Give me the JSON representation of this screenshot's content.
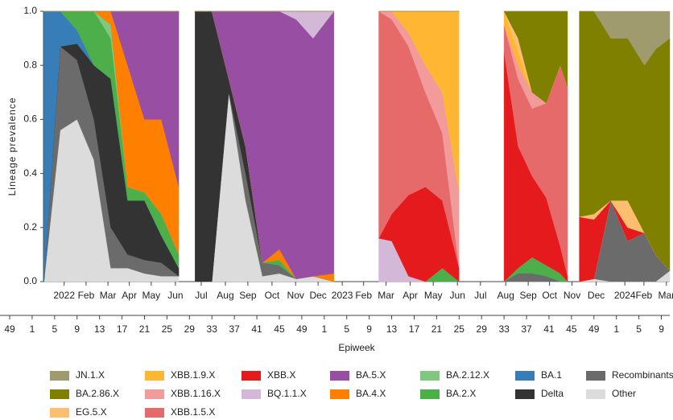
{
  "chart_data": {
    "type": "stacked_area",
    "y_label": "Lineage prevalence",
    "x2_label": "Epiweek",
    "ylim": [
      0,
      1
    ],
    "yticks": [
      {
        "value": 0,
        "label": "0.0"
      },
      0.2,
      0.4,
      0.6,
      0.8,
      {
        "value": 1,
        "label": "1.0"
      }
    ],
    "xlim": [
      6.1,
      117.5
    ],
    "x2lim": [
      0,
      117.5
    ],
    "xticks": [
      {
        "value": 9.7,
        "label": "2022"
      },
      {
        "value": 13.6,
        "label": "Feb"
      },
      {
        "value": 17.5,
        "label": "Mar"
      },
      {
        "value": 21.3,
        "label": "Apr"
      },
      {
        "value": 25.2,
        "label": "May"
      },
      {
        "value": 29.5,
        "label": "Jun"
      },
      {
        "value": 34.1,
        "label": "Jul"
      },
      {
        "value": 38.4,
        "label": "Aug"
      },
      {
        "value": 42.4,
        "label": "Sep"
      },
      {
        "value": 46.7,
        "label": "Oct"
      },
      {
        "value": 50.9,
        "label": "Nov"
      },
      {
        "value": 54.9,
        "label": "Dec"
      },
      {
        "value": 59.2,
        "label": "2023"
      },
      {
        "value": 63,
        "label": "Feb"
      },
      {
        "value": 67,
        "label": "Mar"
      },
      {
        "value": 71.3,
        "label": "Apr"
      },
      {
        "value": 75.4,
        "label": "May"
      },
      {
        "value": 79.7,
        "label": "Jun"
      },
      {
        "value": 83.8,
        "label": "Jul"
      },
      {
        "value": 88.3,
        "label": "Aug"
      },
      {
        "value": 92.3,
        "label": "Sep"
      },
      {
        "value": 96.1,
        "label": "Oct"
      },
      {
        "value": 100.1,
        "label": "Nov"
      },
      {
        "value": 104.4,
        "label": "Dec"
      },
      {
        "value": 109.5,
        "label": "2024"
      },
      {
        "value": 112.9,
        "label": "Feb"
      },
      {
        "value": 116.9,
        "label": "Mar"
      }
    ],
    "x2ticks": [
      {
        "value": 0,
        "label": "49"
      },
      {
        "value": 4,
        "label": "1"
      },
      {
        "value": 8,
        "label": "5"
      },
      {
        "value": 12,
        "label": "9"
      },
      {
        "value": 16,
        "label": "13"
      },
      {
        "value": 20,
        "label": "17"
      },
      {
        "value": 24,
        "label": "21"
      },
      {
        "value": 28,
        "label": "25"
      },
      {
        "value": 32,
        "label": "29"
      },
      {
        "value": 36,
        "label": "33"
      },
      {
        "value": 40,
        "label": "37"
      },
      {
        "value": 44,
        "label": "41"
      },
      {
        "value": 48,
        "label": "45"
      },
      {
        "value": 52,
        "label": "49"
      },
      {
        "value": 56,
        "label": "1"
      },
      {
        "value": 60,
        "label": "5"
      },
      {
        "value": 64,
        "label": "9"
      },
      {
        "value": 68,
        "label": "13"
      },
      {
        "value": 72,
        "label": "17"
      },
      {
        "value": 76,
        "label": "21"
      },
      {
        "value": 80,
        "label": "25"
      },
      {
        "value": 84,
        "label": "29"
      },
      {
        "value": 88,
        "label": "33"
      },
      {
        "value": 92,
        "label": "37"
      },
      {
        "value": 96,
        "label": "41"
      },
      {
        "value": 100,
        "label": "45"
      },
      {
        "value": 104,
        "label": "49"
      },
      {
        "value": 108,
        "label": "1"
      },
      {
        "value": 112,
        "label": "5"
      },
      {
        "value": 116,
        "label": "9"
      }
    ],
    "x": [
      6.1,
      9,
      12,
      15,
      18,
      21,
      24,
      27,
      30.1,
      31.5,
      33,
      36,
      39,
      42,
      45,
      48,
      51,
      54,
      57.7,
      61,
      65.7,
      68,
      71,
      74,
      77,
      80,
      84,
      88,
      90.5,
      93,
      95.5,
      98,
      99.3,
      100.3,
      101.4,
      104,
      107,
      110,
      113,
      115,
      117.5
    ],
    "series": [
      {
        "name": "JN.1.X",
        "color": "#a09b6e",
        "values": [
          0,
          0,
          0,
          0,
          0,
          0,
          0,
          0,
          0,
          null,
          0,
          0,
          0,
          0,
          0,
          0,
          0,
          0,
          0,
          null,
          0,
          0,
          0,
          0,
          0,
          0,
          null,
          0,
          0,
          0,
          0,
          0,
          0,
          null,
          0,
          0,
          0.1,
          0.1,
          0.2,
          0.14,
          0.1
        ]
      },
      {
        "name": "BA.2.86.X",
        "color": "#7f7f00",
        "values": [
          0,
          0,
          0,
          0,
          0,
          0,
          0,
          0,
          0,
          null,
          0,
          0,
          0,
          0,
          0,
          0,
          0,
          0,
          0,
          null,
          0,
          0,
          0,
          0,
          0,
          0,
          null,
          0,
          0.1,
          0.3,
          0.34,
          0.2,
          0.28,
          null,
          0.76,
          0.75,
          0.6,
          0.6,
          0.62,
          0.76,
          0.86
        ]
      },
      {
        "name": "EG.5.X",
        "color": "#fdbf6f",
        "values": [
          0,
          0,
          0,
          0,
          0,
          0,
          0,
          0,
          0,
          null,
          0,
          0,
          0,
          0,
          0,
          0,
          0,
          0,
          0,
          null,
          0,
          0,
          0,
          0,
          0,
          0,
          null,
          0,
          0.05,
          0,
          0,
          0,
          0,
          null,
          0,
          0.02,
          0,
          0.1,
          0,
          0,
          0
        ]
      },
      {
        "name": "XBB.1.9.X",
        "color": "#ffb733",
        "values": [
          0,
          0,
          0,
          0,
          0,
          0,
          0,
          0,
          0,
          null,
          0,
          0,
          0,
          0,
          0,
          0,
          0,
          0,
          0,
          null,
          0,
          0,
          0.08,
          0.2,
          0.3,
          0.67,
          null,
          0.05,
          0.05,
          0,
          0,
          0,
          0,
          null,
          0,
          0,
          0,
          0,
          0,
          0,
          0
        ]
      },
      {
        "name": "XBB.1.16.X",
        "color": "#f29b9b",
        "values": [
          0,
          0,
          0,
          0,
          0,
          0,
          0,
          0,
          0,
          null,
          0,
          0,
          0,
          0,
          0,
          0,
          0,
          0,
          0,
          null,
          0,
          0.03,
          0.05,
          0.1,
          0.15,
          0.28,
          null,
          0,
          0.05,
          0.06,
          0,
          0,
          0,
          null,
          0,
          0,
          0,
          0,
          0,
          0,
          0
        ]
      },
      {
        "name": "XBB.1.5.X",
        "color": "#e76a6a",
        "values": [
          0,
          0,
          0,
          0,
          0,
          0,
          0,
          0,
          0,
          null,
          0,
          0,
          0,
          0,
          0,
          0,
          0,
          0,
          0,
          null,
          0.84,
          0.72,
          0.55,
          0.35,
          0.25,
          0,
          null,
          0.1,
          0.25,
          0.25,
          0.35,
          0.67,
          0.7,
          null,
          0,
          0,
          0,
          0,
          0,
          0,
          0
        ]
      },
      {
        "name": "XBB.X",
        "color": "#e41a1c",
        "values": [
          0,
          0,
          0,
          0,
          0,
          0,
          0,
          0,
          0,
          null,
          0,
          0,
          0,
          0,
          0,
          0,
          0,
          0,
          0,
          null,
          0,
          0.1,
          0.3,
          0.35,
          0.25,
          0.05,
          null,
          0.85,
          0.45,
          0.3,
          0.25,
          0.1,
          0.02,
          null,
          0.24,
          0.22,
          0,
          0.05,
          0,
          0,
          0
        ]
      },
      {
        "name": "BQ.1.1.X",
        "color": "#d3b9d7",
        "values": [
          0,
          0,
          0,
          0,
          0,
          0,
          0,
          0,
          0,
          null,
          0,
          0,
          0,
          0,
          0,
          0,
          0.03,
          0.1,
          0,
          null,
          0.16,
          0.15,
          0.02,
          0,
          0,
          0,
          null,
          0,
          0,
          0,
          0,
          0,
          0,
          null,
          0,
          0,
          0,
          0,
          0,
          0,
          0
        ]
      },
      {
        "name": "BA.5.X",
        "color": "#984ea3",
        "values": [
          0,
          0,
          0,
          0,
          0,
          0.2,
          0.4,
          0.4,
          0.65,
          null,
          0,
          0,
          0.25,
          0.5,
          0.93,
          0.88,
          0.96,
          0.88,
          0.97,
          null,
          0,
          0,
          0,
          0,
          0,
          0,
          null,
          0,
          0,
          0,
          0,
          0,
          0,
          null,
          0,
          0,
          0,
          0,
          0,
          0,
          0
        ]
      },
      {
        "name": "BA.4.X",
        "color": "#ff7f00",
        "values": [
          0,
          0,
          0,
          0,
          0.05,
          0.45,
          0.27,
          0.35,
          0.25,
          null,
          0,
          0,
          0,
          0,
          0,
          0.04,
          0,
          0,
          0.03,
          null,
          0,
          0,
          0,
          0,
          0,
          0,
          null,
          0,
          0,
          0,
          0,
          0,
          0,
          null,
          0,
          0,
          0,
          0,
          0,
          0,
          0
        ]
      },
      {
        "name": "BA.2.12.X",
        "color": "#80c77f",
        "values": [
          0,
          0,
          0,
          0,
          0.05,
          0,
          0,
          0,
          0,
          null,
          0,
          0,
          0,
          0,
          0,
          0,
          0,
          0,
          0,
          null,
          0,
          0,
          0,
          0,
          0,
          0,
          null,
          0,
          0,
          0,
          0,
          0,
          0,
          null,
          0,
          0,
          0,
          0,
          0,
          0,
          0
        ]
      },
      {
        "name": "BA.2.X",
        "color": "#4daf4a",
        "values": [
          0,
          0,
          0.07,
          0.2,
          0.15,
          0.05,
          0.03,
          0.08,
          0.05,
          null,
          0,
          0,
          0,
          0,
          0,
          0.02,
          0,
          0,
          0,
          null,
          0,
          0,
          0,
          0,
          0.05,
          0,
          null,
          0,
          0.02,
          0.06,
          0.04,
          0.03,
          0,
          null,
          0,
          0,
          0,
          0,
          0,
          0,
          0
        ]
      },
      {
        "name": "BA.1",
        "color": "#377eb8",
        "values": [
          1,
          0.13,
          0.05,
          0,
          0,
          0,
          0,
          0,
          0,
          null,
          0,
          0,
          0,
          0,
          0,
          0,
          0,
          0,
          0,
          null,
          0,
          0,
          0,
          0,
          0,
          0,
          null,
          0,
          0,
          0,
          0,
          0,
          0,
          null,
          0,
          0,
          0,
          0,
          0,
          0,
          0
        ]
      },
      {
        "name": "Delta",
        "color": "#333333",
        "values": [
          0,
          0,
          0.06,
          0.2,
          0.55,
          0.2,
          0.22,
          0.1,
          0.03,
          null,
          1,
          1,
          0.05,
          0.1,
          0,
          0,
          0,
          0,
          0,
          null,
          0,
          0,
          0,
          0,
          0,
          0,
          null,
          0,
          0,
          0,
          0,
          0,
          0,
          null,
          0,
          0,
          0,
          0,
          0,
          0,
          0
        ]
      },
      {
        "name": "Recombinants",
        "color": "#6b6b6b",
        "values": [
          0,
          0.31,
          0.22,
          0.15,
          0.15,
          0.05,
          0.05,
          0.05,
          0,
          null,
          0,
          0,
          0,
          0.1,
          0.05,
          0.03,
          0,
          0,
          0,
          null,
          0,
          0,
          0,
          0,
          0,
          0,
          null,
          0,
          0.03,
          0.03,
          0.02,
          0,
          0,
          null,
          0,
          0,
          0.3,
          0.15,
          0.18,
          0.1,
          0
        ]
      },
      {
        "name": "Other",
        "color": "#dcdcdc",
        "values": [
          0,
          0.56,
          0.6,
          0.45,
          0.05,
          0.05,
          0.03,
          0.02,
          0.02,
          null,
          0,
          0,
          0.7,
          0.3,
          0.02,
          0.03,
          0.01,
          0.02,
          0,
          null,
          0,
          0,
          0,
          0,
          0,
          0,
          null,
          0,
          0,
          0,
          0,
          0,
          0,
          null,
          0,
          0.01,
          0,
          0,
          0,
          0,
          0.04
        ]
      }
    ]
  }
}
